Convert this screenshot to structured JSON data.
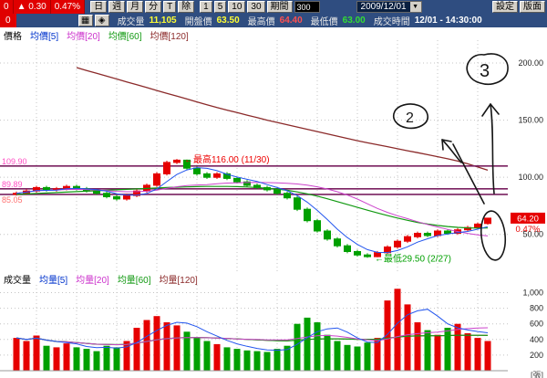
{
  "toolbar": {
    "change_box": {
      "v1": "0",
      "v2": "▲ 0.30",
      "v3": "0.47%"
    },
    "period_buttons": [
      "日",
      "週",
      "月",
      "分",
      "T",
      "除"
    ],
    "interval_buttons": [
      "1",
      "5",
      "10",
      "30"
    ],
    "range_label": "期間",
    "range_value": "300",
    "date_value": "2009/12/01",
    "settings_label": "設定",
    "layout_label": "版面"
  },
  "icons": {
    "chart_grid": "▦",
    "crosshair": "◈",
    "dropdown": "▼"
  },
  "quotebar": {
    "change_box": "0",
    "fields": [
      {
        "label": "成交量",
        "value": "11,105",
        "color": "#ffff33"
      },
      {
        "label": "開盤價",
        "value": "63.50",
        "color": "#ffff33"
      },
      {
        "label": "最高價",
        "value": "64.40",
        "color": "#ff5050"
      },
      {
        "label": "最低價",
        "value": "63.00",
        "color": "#33dd33"
      },
      {
        "label": "成交時間",
        "value": "12/01 - 14:30:00",
        "color": "#ffffff"
      }
    ]
  },
  "price_legend": [
    {
      "label": "價格",
      "color": "#000000"
    },
    {
      "label": "均價[5]",
      "color": "#0033cc"
    },
    {
      "label": "均價[20]",
      "color": "#cc33cc"
    },
    {
      "label": "均價[60]",
      "color": "#119911"
    },
    {
      "label": "均價[120]",
      "color": "#8b2a2a"
    }
  ],
  "volume_legend": [
    {
      "label": "成交量",
      "color": "#000000"
    },
    {
      "label": "均量[5]",
      "color": "#0033cc"
    },
    {
      "label": "均量[20]",
      "color": "#cc33cc"
    },
    {
      "label": "均量[60]",
      "color": "#119911"
    },
    {
      "label": "均量[120]",
      "color": "#8b2a2a"
    }
  ],
  "annotations": {
    "circle3_text": "3",
    "circle2_text": "2"
  },
  "chart_data": {
    "type": "candlestick+volume",
    "x_unit": "week",
    "price_axis": {
      "min": 17,
      "max": 220,
      "ticks": [
        {
          "v": 200,
          "label": "200.00"
        },
        {
          "v": 150,
          "label": "150.00"
        },
        {
          "v": 100,
          "label": "100.00"
        },
        {
          "v": 50,
          "label": "50.00"
        }
      ]
    },
    "volume_axis": {
      "min": 0,
      "max": 1100,
      "unit_label": "[張]",
      "ticks": [
        {
          "v": 1000,
          "label": "1,000"
        },
        {
          "v": 800,
          "label": "800"
        },
        {
          "v": 600,
          "label": "600"
        },
        {
          "v": 400,
          "label": "400"
        },
        {
          "v": 200,
          "label": "200"
        }
      ]
    },
    "colors": {
      "up": "#e60000",
      "down": "#00a000",
      "ma5": "#2255ee",
      "ma20": "#cc44cc",
      "ma60": "#119911",
      "ma120": "#8b2a2a",
      "hline": "#7a2060",
      "grid": "#c4c4c4"
    },
    "candles": [
      [
        85,
        87.5,
        84,
        86
      ],
      [
        86,
        89.5,
        84.5,
        88
      ],
      [
        88,
        92.5,
        86.5,
        91
      ],
      [
        91,
        92.5,
        87.5,
        89
      ],
      [
        89,
        91.5,
        87.5,
        90
      ],
      [
        90,
        93.5,
        88.5,
        92
      ],
      [
        92,
        93.5,
        88.5,
        90
      ],
      [
        90,
        91.5,
        86.5,
        88
      ],
      [
        88,
        89.5,
        84.5,
        86
      ],
      [
        86,
        87.5,
        81.5,
        83
      ],
      [
        83,
        84.5,
        79.5,
        81
      ],
      [
        81,
        85.5,
        79.5,
        84
      ],
      [
        84,
        89.5,
        82.5,
        88
      ],
      [
        88,
        94.5,
        86.5,
        93
      ],
      [
        93,
        104.5,
        91.5,
        103
      ],
      [
        103,
        114.5,
        101.5,
        113
      ],
      [
        113,
        116,
        111.5,
        115
      ],
      [
        115,
        115.5,
        106.5,
        108
      ],
      [
        108,
        109.5,
        101.5,
        103
      ],
      [
        103,
        104.5,
        98.5,
        100
      ],
      [
        100,
        104.5,
        98.5,
        103
      ],
      [
        103,
        104.5,
        97.5,
        99
      ],
      [
        99,
        100.5,
        94.5,
        96
      ],
      [
        96,
        97.5,
        91.5,
        93
      ],
      [
        93,
        94.5,
        89.5,
        91
      ],
      [
        91,
        92.5,
        87.5,
        89
      ],
      [
        89,
        90.5,
        84.5,
        86
      ],
      [
        86,
        87.5,
        80.5,
        82
      ],
      [
        82,
        83.5,
        70.5,
        72
      ],
      [
        72,
        73.5,
        60.5,
        62
      ],
      [
        62,
        63.5,
        51.5,
        53
      ],
      [
        53,
        54.5,
        44.5,
        46
      ],
      [
        46,
        47.5,
        38.5,
        40
      ],
      [
        40,
        41.5,
        33.5,
        35
      ],
      [
        35,
        36.5,
        30.5,
        32
      ],
      [
        32,
        33.5,
        29.5,
        30.5
      ],
      [
        30.5,
        35.5,
        30,
        34
      ],
      [
        34,
        40.5,
        32.5,
        39
      ],
      [
        39,
        45.5,
        37.5,
        44
      ],
      [
        44,
        49.5,
        42.5,
        48
      ],
      [
        48,
        52.5,
        46.5,
        51
      ],
      [
        51,
        52.5,
        47.5,
        49
      ],
      [
        49,
        54.5,
        47.5,
        53
      ],
      [
        53,
        54.5,
        49.5,
        51
      ],
      [
        51,
        55.5,
        49.5,
        54
      ],
      [
        54,
        57.5,
        52.5,
        56
      ],
      [
        56,
        60.5,
        54.5,
        59
      ],
      [
        59.5,
        64.4,
        58.5,
        64.2
      ]
    ],
    "volumes": [
      420,
      380,
      450,
      320,
      300,
      350,
      300,
      280,
      250,
      320,
      300,
      380,
      550,
      650,
      700,
      620,
      580,
      500,
      420,
      380,
      340,
      300,
      280,
      260,
      250,
      240,
      280,
      320,
      600,
      680,
      620,
      460,
      380,
      330,
      310,
      360,
      420,
      900,
      1050,
      850,
      620,
      520,
      460,
      550,
      600,
      480,
      420,
      380
    ],
    "ma60": [
      85,
      85.4,
      85.8,
      86.2,
      86.6,
      87,
      87.4,
      87.8,
      88.2,
      88.6,
      89,
      89.4,
      89.8,
      90.2,
      90.6,
      91,
      91.3,
      91.6,
      91.8,
      92,
      92,
      92,
      91.8,
      91.5,
      91,
      90.4,
      89.6,
      88.6,
      87.2,
      85.5,
      83.5,
      81.2,
      78.7,
      76.2,
      73.7,
      71.2,
      68.8,
      66.5,
      64.3,
      62.3,
      60.5,
      59,
      57.8,
      56.9,
      56.2,
      55.7,
      55.5,
      55.6
    ],
    "ma120": [
      null,
      null,
      null,
      null,
      null,
      null,
      196,
      193.5,
      191,
      188.5,
      186,
      183.5,
      181,
      178.5,
      176,
      173.5,
      171,
      168.5,
      166,
      163.5,
      161,
      158.8,
      156.6,
      154.4,
      152.2,
      150,
      148,
      146,
      144,
      142,
      140,
      138,
      136,
      134,
      132,
      130.2,
      128.5,
      126.8,
      125,
      123.2,
      121.5,
      119.8,
      118,
      116.2,
      114.2,
      111.8,
      109,
      106.2
    ],
    "hlines": [
      {
        "value": 109.9,
        "label": "109.90",
        "label_color": "#ff4fc4"
      },
      {
        "value": 89.89,
        "label": "89.89",
        "label_color": "#ff4fc4"
      },
      {
        "value": 85.05,
        "label": "85.05",
        "label_color": "#ff7070"
      }
    ],
    "callouts": [
      {
        "text": "←最高116.00 (11/30)",
        "color": "#ee0000",
        "anchor_index": 16,
        "anchor_price": 116
      },
      {
        "text": "←最低29.50 (2/27)",
        "color": "#00a000",
        "anchor_index": 35,
        "anchor_price": 29.5
      }
    ],
    "last_price_badge": {
      "value": 64.2,
      "price": "64.20",
      "pct": "0.47%",
      "bg": "#e60000"
    }
  }
}
